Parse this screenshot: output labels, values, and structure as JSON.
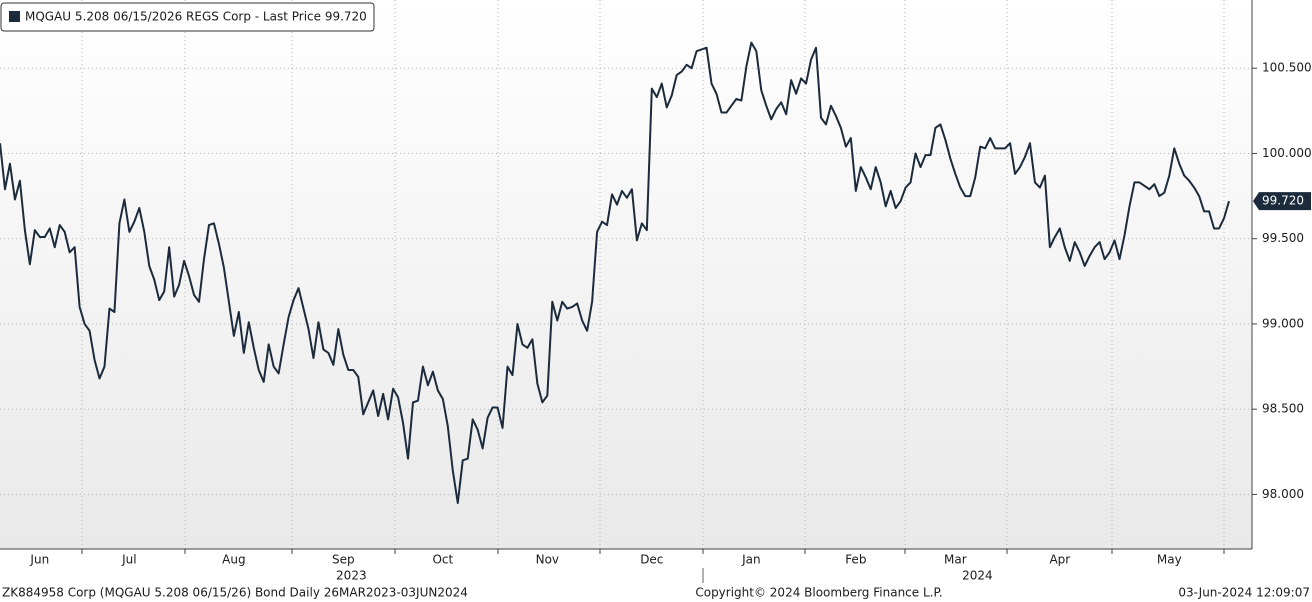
{
  "chart_data": {
    "type": "line",
    "categories": [
      null,
      null,
      null,
      null,
      null,
      null,
      null,
      null,
      "Jun",
      null,
      null,
      null,
      null,
      null,
      null,
      null,
      null,
      null,
      null,
      null,
      null,
      null,
      null,
      null,
      null,
      null,
      "Jul",
      null,
      null,
      null,
      null,
      null,
      null,
      null,
      null,
      null,
      null,
      null,
      null,
      null,
      null,
      null,
      null,
      null,
      null,
      null,
      null,
      "Aug",
      null,
      null,
      null,
      null,
      null,
      null,
      null,
      null,
      null,
      null,
      null,
      null,
      null,
      null,
      null,
      null,
      null,
      null,
      null,
      null,
      null,
      "Sep",
      null,
      null,
      null,
      null,
      null,
      null,
      null,
      null,
      null,
      null,
      null,
      null,
      null,
      null,
      null,
      null,
      null,
      null,
      null,
      "Oct",
      null,
      null,
      null,
      null,
      null,
      null,
      null,
      null,
      null,
      null,
      null,
      null,
      null,
      null,
      null,
      null,
      null,
      null,
      null,
      null,
      "Nov",
      null,
      null,
      null,
      null,
      null,
      null,
      null,
      null,
      null,
      null,
      null,
      null,
      null,
      null,
      null,
      null,
      null,
      null,
      null,
      null,
      "Dec",
      null,
      null,
      null,
      null,
      null,
      null,
      null,
      null,
      null,
      null,
      null,
      null,
      null,
      null,
      null,
      null,
      null,
      null,
      null,
      "Jan",
      null,
      null,
      null,
      null,
      null,
      null,
      null,
      null,
      null,
      null,
      null,
      null,
      null,
      null,
      null,
      null,
      null,
      null,
      null,
      null,
      "Feb",
      null,
      null,
      null,
      null,
      null,
      null,
      null,
      null,
      null,
      null,
      null,
      null,
      null,
      null,
      null,
      null,
      null,
      null,
      null,
      "Mar",
      null,
      null,
      null,
      null,
      null,
      null,
      null,
      null,
      null,
      null,
      null,
      null,
      null,
      null,
      null,
      null,
      null,
      null,
      null,
      null,
      "Apr",
      null,
      null,
      null,
      null,
      null,
      null,
      null,
      null,
      null,
      null,
      null,
      null,
      null,
      null,
      null,
      null,
      null,
      null,
      null,
      null,
      null,
      "May",
      null,
      null,
      null,
      null,
      null,
      null,
      null,
      null,
      null,
      null,
      null,
      null
    ],
    "series": [
      {
        "name": "MQGAU 5.208 06/15/2026 REGS Corp - Last Price 99.720",
        "color": "#1c2b3c",
        "values": [
          100.06,
          99.79,
          99.94,
          99.73,
          99.84,
          99.55,
          99.35,
          99.55,
          99.51,
          99.51,
          99.56,
          99.45,
          99.58,
          99.54,
          99.42,
          99.45,
          99.1,
          99.0,
          98.96,
          98.79,
          98.68,
          98.75,
          99.09,
          99.07,
          99.59,
          99.73,
          99.54,
          99.6,
          99.68,
          99.54,
          99.34,
          99.26,
          99.14,
          99.19,
          99.45,
          99.16,
          99.23,
          99.37,
          99.28,
          99.17,
          99.13,
          99.38,
          99.58,
          99.59,
          99.47,
          99.33,
          99.13,
          98.93,
          99.07,
          98.83,
          99.01,
          98.86,
          98.73,
          98.66,
          98.88,
          98.75,
          98.71,
          98.88,
          99.04,
          99.14,
          99.21,
          99.09,
          98.97,
          98.8,
          99.01,
          98.85,
          98.83,
          98.76,
          98.97,
          98.82,
          98.73,
          98.73,
          98.69,
          98.47,
          98.54,
          98.61,
          98.46,
          98.59,
          98.44,
          98.62,
          98.57,
          98.42,
          98.21,
          98.54,
          98.55,
          98.75,
          98.64,
          98.72,
          98.61,
          98.56,
          98.4,
          98.14,
          97.95,
          98.2,
          98.21,
          98.44,
          98.38,
          98.27,
          98.45,
          98.51,
          98.51,
          98.39,
          98.75,
          98.7,
          99.0,
          98.88,
          98.86,
          98.91,
          98.65,
          98.54,
          98.58,
          99.13,
          99.02,
          99.13,
          99.09,
          99.1,
          99.12,
          99.02,
          98.96,
          99.13,
          99.54,
          99.6,
          99.58,
          99.76,
          99.7,
          99.78,
          99.74,
          99.79,
          99.49,
          99.59,
          99.55,
          100.38,
          100.33,
          100.41,
          100.27,
          100.34,
          100.46,
          100.48,
          100.52,
          100.5,
          100.6,
          100.61,
          100.62,
          100.41,
          100.35,
          100.24,
          100.24,
          100.28,
          100.32,
          100.31,
          100.51,
          100.65,
          100.6,
          100.37,
          100.28,
          100.2,
          100.26,
          100.3,
          100.23,
          100.43,
          100.35,
          100.44,
          100.41,
          100.55,
          100.62,
          100.21,
          100.17,
          100.28,
          100.22,
          100.15,
          100.04,
          100.09,
          99.78,
          99.92,
          99.86,
          99.79,
          99.92,
          99.83,
          99.69,
          99.78,
          99.68,
          99.72,
          99.8,
          99.83,
          100.0,
          99.92,
          99.99,
          99.99,
          100.15,
          100.17,
          100.08,
          99.97,
          99.88,
          99.8,
          99.75,
          99.75,
          99.86,
          100.04,
          100.03,
          100.09,
          100.03,
          100.03,
          100.03,
          100.06,
          99.88,
          99.92,
          99.98,
          100.06,
          99.83,
          99.8,
          99.87,
          99.45,
          99.51,
          99.56,
          99.45,
          99.37,
          99.48,
          99.42,
          99.34,
          99.4,
          99.45,
          99.48,
          99.38,
          99.42,
          99.49,
          99.38,
          99.52,
          99.69,
          99.83,
          99.83,
          99.81,
          99.79,
          99.82,
          99.75,
          99.77,
          99.87,
          100.03,
          99.94,
          99.87,
          99.84,
          99.8,
          99.75,
          99.66,
          99.66,
          99.56,
          99.56,
          99.62,
          99.72
        ],
        "last_value_label": "99.720"
      }
    ],
    "ylim": [
      97.68,
      100.9
    ],
    "yticks": [
      {
        "value": 98,
        "label": "98.000"
      },
      {
        "value": 98.5,
        "label": "98.500"
      },
      {
        "value": 99,
        "label": "99.000"
      },
      {
        "value": 99.5,
        "label": "99.500"
      },
      {
        "value": 100,
        "label": "100.000"
      },
      {
        "value": 100.5,
        "label": "100.500"
      }
    ],
    "grid": true,
    "years": [
      "2023",
      "2024"
    ]
  },
  "footer": {
    "left": "ZK884958 Corp (MQGAU 5.208 06/15/26) Bond  Daily 26MAR2023-03JUN2024",
    "center": "Copyright© 2024 Bloomberg Finance L.P.",
    "right": "03-Jun-2024 12:09:07"
  }
}
